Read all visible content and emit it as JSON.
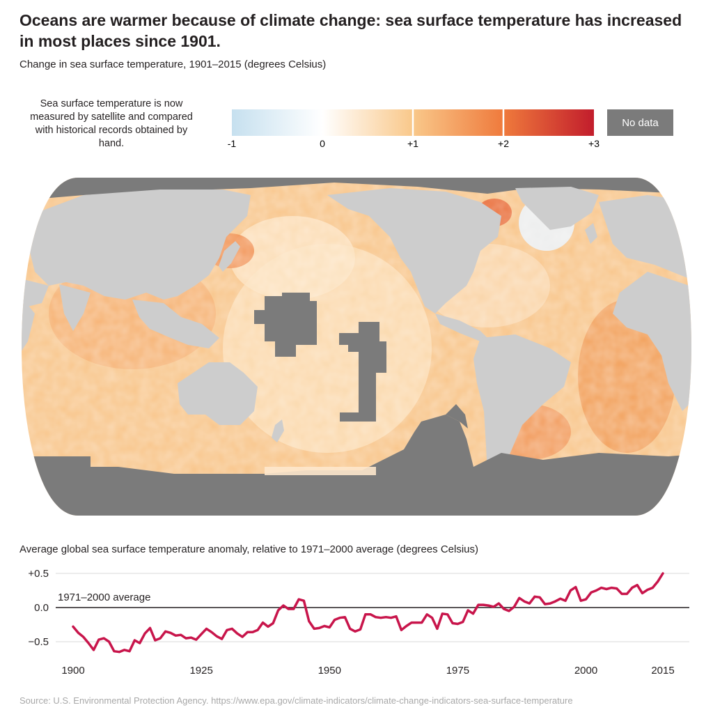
{
  "header": {
    "title": "Oceans are warmer because of climate change: sea surface temperature has increased in most places since 1901.",
    "subtitle": "Change in sea surface temperature, 1901–2015 (degrees Celsius)"
  },
  "note": "Sea surface temperature is now measured by satellite and compared with historical records obtained by hand.",
  "legend": {
    "ticks": [
      "-1",
      "0",
      "+1",
      "+2",
      "+3"
    ],
    "no_data_label": "No data",
    "colors": {
      "cold": "#c6e0ef",
      "zero": "#ffffff",
      "plus1": "#f9c88a",
      "plus2": "#ef7a3c",
      "plus3": "#c21d2c",
      "no_data": "#7b7b7b",
      "land": "#cdcdcd"
    }
  },
  "timeseries_title": "Average global sea surface temperature anomaly, relative to 1971–2000 average (degrees Celsius)",
  "source": "Source: U.S. Environmental Protection Agency. https://www.epa.gov/climate-indicators/climate-change-indicators-sea-surface-temperature",
  "chart_data": {
    "type": "line",
    "title": "Average global sea surface temperature anomaly, relative to 1971–2000 average (degrees Celsius)",
    "x_ticks": [
      "1900",
      "1925",
      "1950",
      "1975",
      "2000",
      "2015"
    ],
    "y_ticks": [
      "+0.5",
      "0.0",
      "−0.5"
    ],
    "xlim": [
      1900,
      2015
    ],
    "ylim": [
      -0.7,
      0.55
    ],
    "reference_label": "1971–2000 average",
    "line_color": "#c8154b",
    "grid": true,
    "series": [
      {
        "x": [
          1900,
          1901,
          1902,
          1903,
          1904,
          1905,
          1906,
          1907,
          1908,
          1909,
          1910,
          1911,
          1912,
          1913,
          1914,
          1915,
          1916,
          1917,
          1918,
          1919,
          1920,
          1921,
          1922,
          1923,
          1924,
          1925,
          1926,
          1927,
          1928,
          1929,
          1930,
          1931,
          1932,
          1933,
          1934,
          1935,
          1936,
          1937,
          1938,
          1939,
          1940,
          1941,
          1942,
          1943,
          1944,
          1945,
          1946,
          1947,
          1948,
          1949,
          1950,
          1951,
          1952,
          1953,
          1954,
          1955,
          1956,
          1957,
          1958,
          1959,
          1960,
          1961,
          1962,
          1963,
          1964,
          1965,
          1966,
          1967,
          1968,
          1969,
          1970,
          1971,
          1972,
          1973,
          1974,
          1975,
          1976,
          1977,
          1978,
          1979,
          1980,
          1981,
          1982,
          1983,
          1984,
          1985,
          1986,
          1987,
          1988,
          1989,
          1990,
          1991,
          1992,
          1993,
          1994,
          1995,
          1996,
          1997,
          1998,
          1999,
          2000,
          2001,
          2002,
          2003,
          2004,
          2005,
          2006,
          2007,
          2008,
          2009,
          2010,
          2011,
          2012,
          2013,
          2014,
          2015
        ],
        "y": [
          -0.28,
          -0.37,
          -0.43,
          -0.52,
          -0.62,
          -0.47,
          -0.45,
          -0.5,
          -0.64,
          -0.65,
          -0.62,
          -0.64,
          -0.48,
          -0.52,
          -0.38,
          -0.3,
          -0.48,
          -0.45,
          -0.35,
          -0.37,
          -0.41,
          -0.4,
          -0.45,
          -0.44,
          -0.47,
          -0.39,
          -0.31,
          -0.36,
          -0.42,
          -0.46,
          -0.33,
          -0.31,
          -0.38,
          -0.43,
          -0.36,
          -0.36,
          -0.33,
          -0.22,
          -0.28,
          -0.23,
          -0.04,
          0.03,
          -0.02,
          -0.02,
          0.12,
          0.1,
          -0.2,
          -0.31,
          -0.3,
          -0.27,
          -0.29,
          -0.18,
          -0.15,
          -0.14,
          -0.31,
          -0.35,
          -0.32,
          -0.1,
          -0.1,
          -0.14,
          -0.15,
          -0.14,
          -0.15,
          -0.13,
          -0.33,
          -0.27,
          -0.22,
          -0.22,
          -0.22,
          -0.1,
          -0.15,
          -0.31,
          -0.09,
          -0.1,
          -0.23,
          -0.24,
          -0.21,
          -0.04,
          -0.09,
          0.04,
          0.04,
          0.03,
          0.01,
          0.06,
          -0.02,
          -0.05,
          0.01,
          0.14,
          0.09,
          0.06,
          0.16,
          0.15,
          0.05,
          0.06,
          0.09,
          0.13,
          0.1,
          0.25,
          0.3,
          0.1,
          0.12,
          0.22,
          0.25,
          0.29,
          0.27,
          0.29,
          0.28,
          0.2,
          0.2,
          0.29,
          0.33,
          0.21,
          0.26,
          0.29,
          0.38,
          0.5
        ]
      }
    ]
  }
}
